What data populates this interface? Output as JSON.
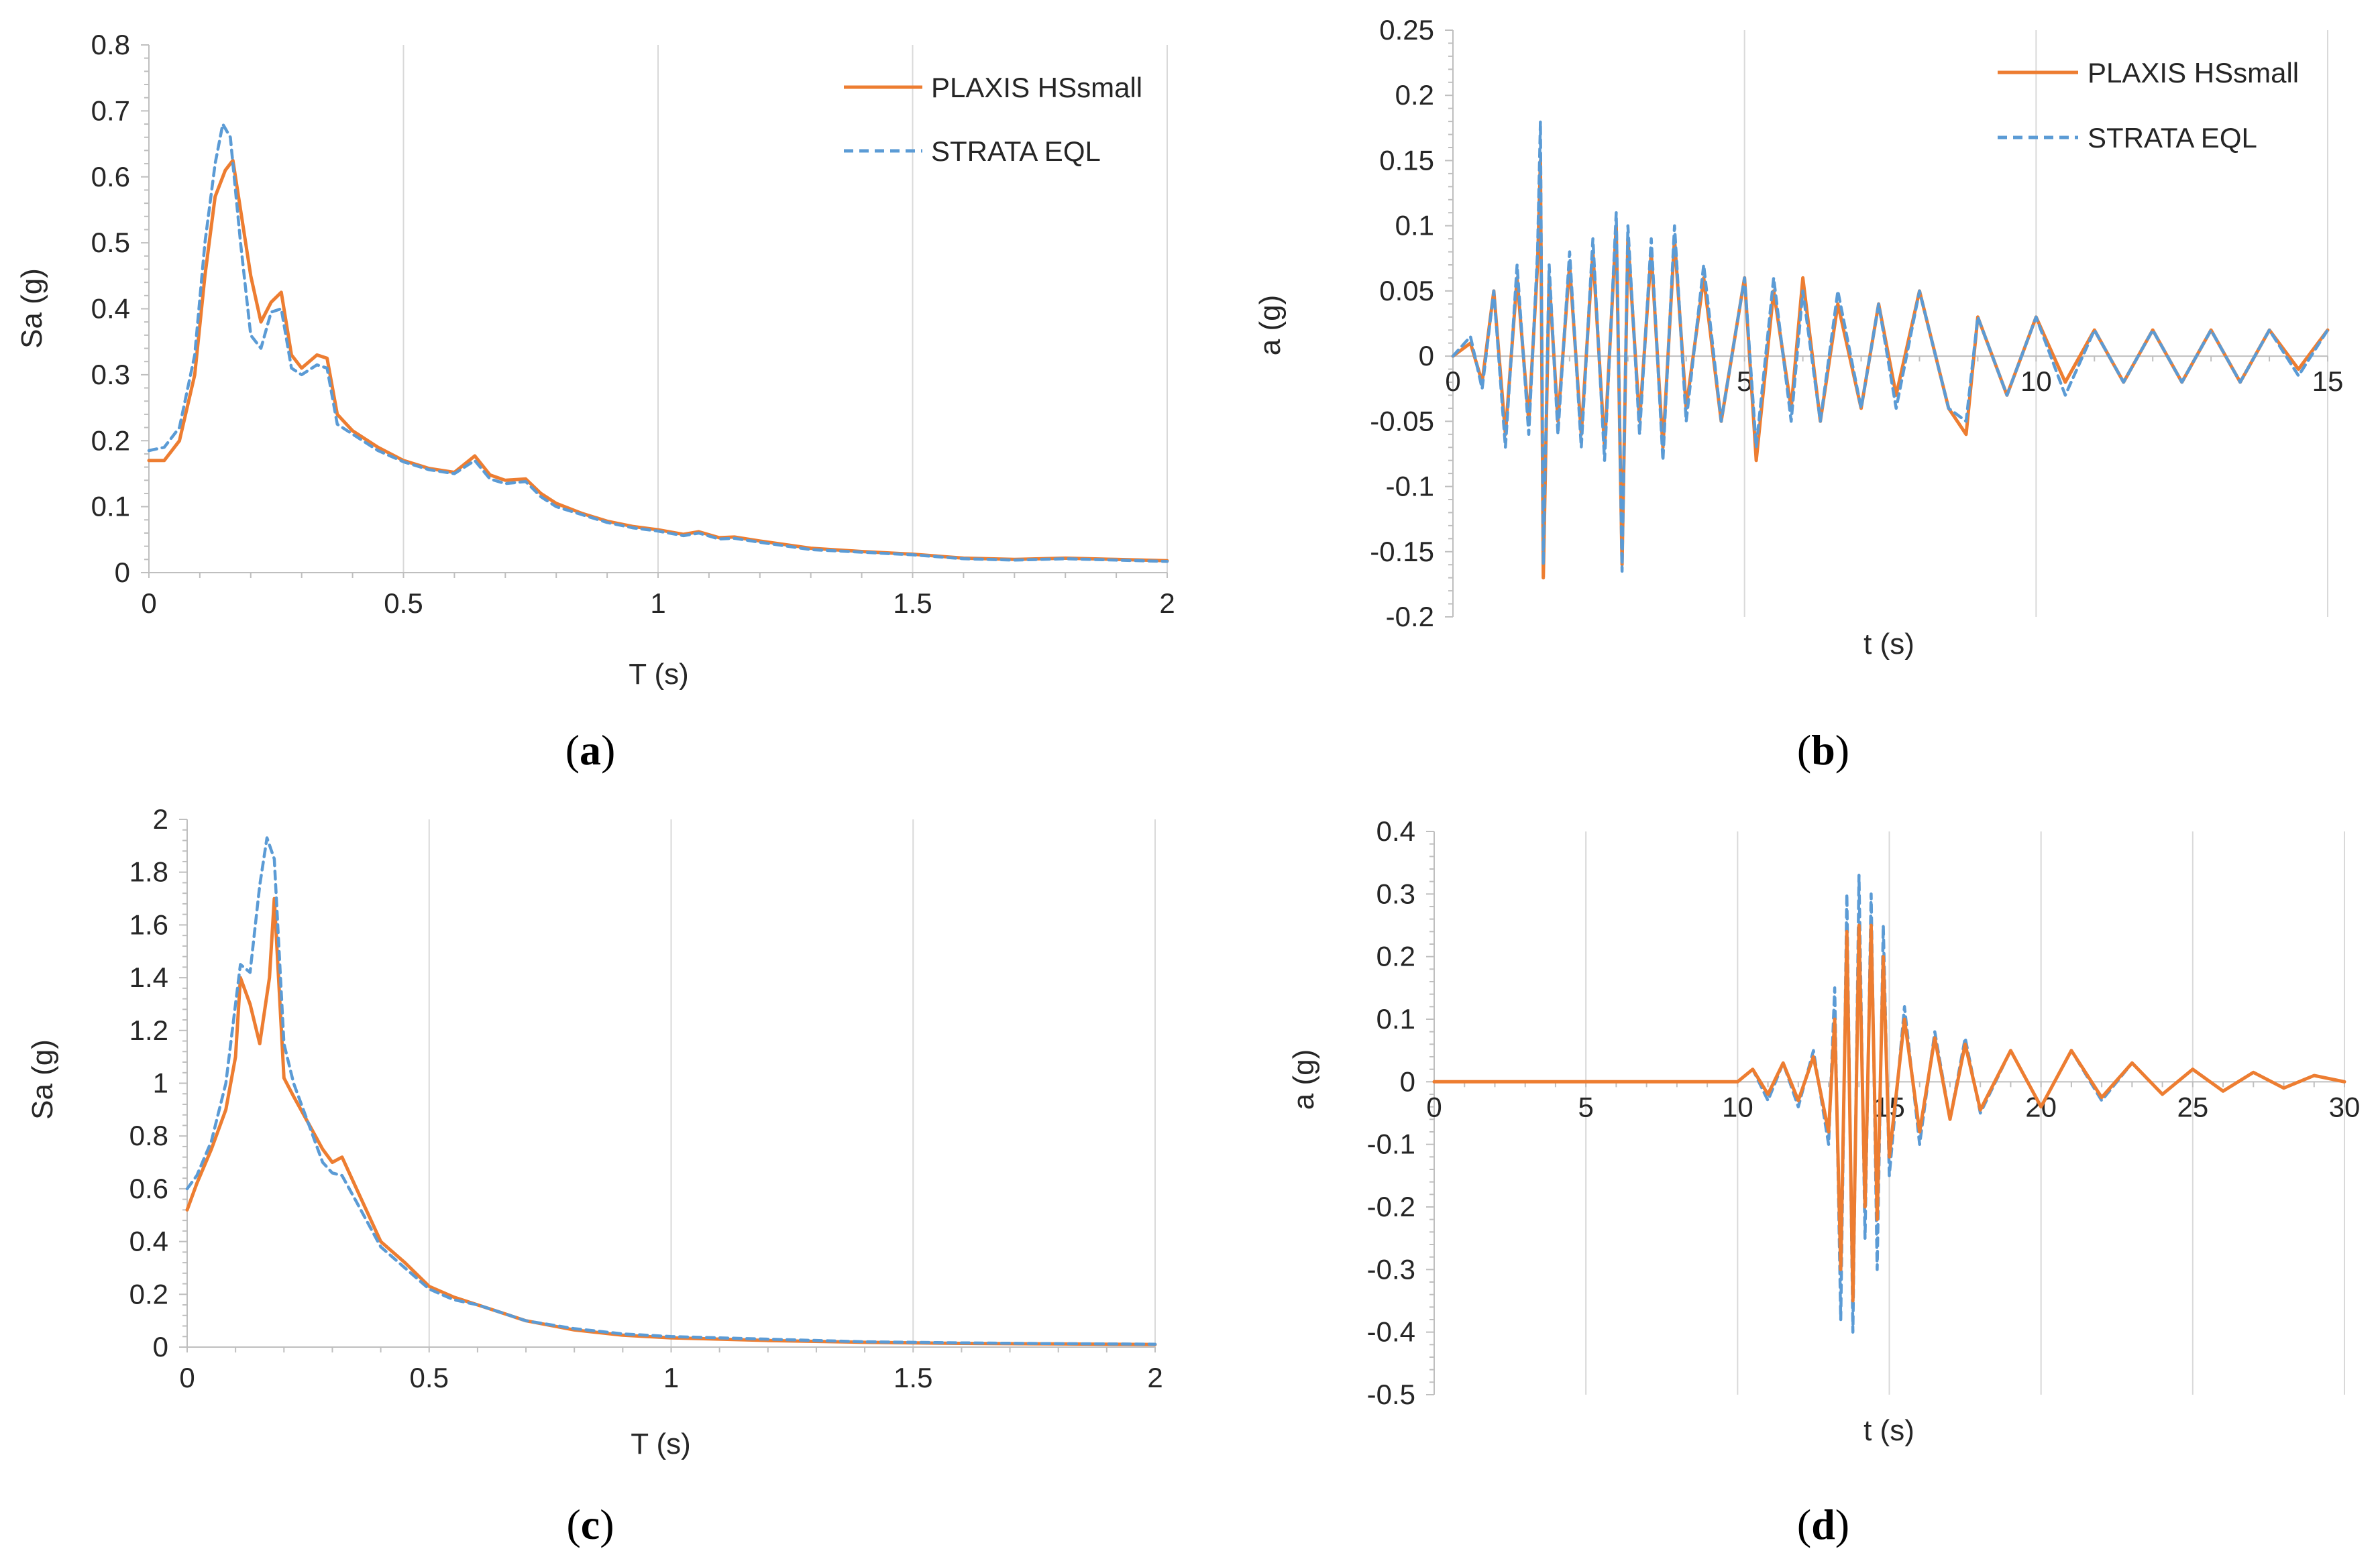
{
  "colors": {
    "plaxis": "#ED7D31",
    "strata": "#5B9BD5",
    "grid": "#d9d9d9",
    "axis": "#bfbfbf"
  },
  "legend": {
    "plaxis": "PLAXIS HSsmall",
    "strata": "STRATA EQL"
  },
  "chart_data": [
    {
      "id": "a",
      "caption": "a",
      "type": "line",
      "xlabel": "T (s)",
      "ylabel": "Sa (g)",
      "xlim": [
        0,
        2
      ],
      "ylim": [
        0,
        0.8
      ],
      "xticks": [
        0,
        0.5,
        1,
        1.5,
        2
      ],
      "xtick_labels": [
        "0",
        "0.5",
        "1",
        "1.5",
        "2"
      ],
      "yticks": [
        0,
        0.1,
        0.2,
        0.3,
        0.4,
        0.5,
        0.6,
        0.7,
        0.8
      ],
      "ytick_labels": [
        "0",
        "0.1",
        "0.2",
        "0.3",
        "0.4",
        "0.5",
        "0.6",
        "0.7",
        "0.8"
      ],
      "legend_position": "top-right",
      "series": [
        {
          "name": "PLAXIS HSsmall",
          "style": "solid",
          "x": [
            0,
            0.03,
            0.06,
            0.09,
            0.11,
            0.13,
            0.15,
            0.165,
            0.18,
            0.2,
            0.22,
            0.24,
            0.26,
            0.28,
            0.3,
            0.33,
            0.35,
            0.37,
            0.4,
            0.45,
            0.5,
            0.55,
            0.6,
            0.64,
            0.67,
            0.7,
            0.74,
            0.77,
            0.8,
            0.85,
            0.9,
            0.95,
            1.0,
            1.05,
            1.08,
            1.12,
            1.15,
            1.2,
            1.3,
            1.4,
            1.5,
            1.6,
            1.7,
            1.8,
            1.9,
            2.0
          ],
          "values": [
            0.17,
            0.17,
            0.2,
            0.3,
            0.45,
            0.57,
            0.61,
            0.625,
            0.55,
            0.45,
            0.38,
            0.41,
            0.425,
            0.33,
            0.31,
            0.33,
            0.325,
            0.24,
            0.215,
            0.19,
            0.17,
            0.158,
            0.152,
            0.177,
            0.148,
            0.14,
            0.142,
            0.12,
            0.105,
            0.09,
            0.078,
            0.07,
            0.065,
            0.058,
            0.062,
            0.053,
            0.054,
            0.048,
            0.037,
            0.032,
            0.028,
            0.022,
            0.02,
            0.022,
            0.02,
            0.018
          ]
        },
        {
          "name": "STRATA EQL",
          "style": "dashed",
          "x": [
            0,
            0.03,
            0.06,
            0.09,
            0.11,
            0.13,
            0.145,
            0.16,
            0.18,
            0.2,
            0.22,
            0.24,
            0.26,
            0.28,
            0.3,
            0.33,
            0.35,
            0.37,
            0.4,
            0.45,
            0.5,
            0.55,
            0.6,
            0.64,
            0.67,
            0.7,
            0.74,
            0.77,
            0.8,
            0.85,
            0.9,
            0.95,
            1.0,
            1.05,
            1.08,
            1.12,
            1.15,
            1.2,
            1.3,
            1.4,
            1.5,
            1.6,
            1.7,
            1.8,
            1.9,
            2.0
          ],
          "values": [
            0.185,
            0.19,
            0.22,
            0.33,
            0.5,
            0.62,
            0.68,
            0.66,
            0.5,
            0.36,
            0.34,
            0.395,
            0.4,
            0.31,
            0.3,
            0.315,
            0.31,
            0.225,
            0.21,
            0.185,
            0.168,
            0.156,
            0.15,
            0.17,
            0.142,
            0.135,
            0.138,
            0.115,
            0.1,
            0.088,
            0.076,
            0.068,
            0.063,
            0.056,
            0.06,
            0.051,
            0.052,
            0.046,
            0.035,
            0.031,
            0.027,
            0.021,
            0.019,
            0.021,
            0.019,
            0.017
          ]
        }
      ]
    },
    {
      "id": "b",
      "caption": "b",
      "type": "line",
      "xlabel": "t (s)",
      "ylabel": "a (g)",
      "xlim": [
        0,
        15
      ],
      "ylim": [
        -0.2,
        0.25
      ],
      "xticks": [
        0,
        5,
        10,
        15
      ],
      "xtick_labels": [
        "0",
        "5",
        "10",
        "15"
      ],
      "yticks": [
        -0.2,
        -0.15,
        -0.1,
        -0.05,
        0,
        0.05,
        0.1,
        0.15,
        0.2,
        0.25
      ],
      "ytick_labels": [
        "-0.2",
        "-0.15",
        "-0.1",
        "-0.05",
        "0",
        "0.05",
        "0.1",
        "0.15",
        "0.2",
        "0.25"
      ],
      "legend_position": "top-right",
      "series": [
        {
          "name": "PLAXIS HSsmall",
          "style": "solid",
          "x": [
            0,
            0.3,
            0.5,
            0.7,
            0.9,
            1.1,
            1.3,
            1.45,
            1.5,
            1.55,
            1.65,
            1.8,
            2.0,
            2.2,
            2.4,
            2.6,
            2.8,
            2.9,
            3.0,
            3.2,
            3.4,
            3.6,
            3.8,
            4.0,
            4.3,
            4.6,
            5.0,
            5.2,
            5.5,
            5.8,
            6.0,
            6.3,
            6.6,
            7.0,
            7.3,
            7.6,
            8.0,
            8.5,
            8.8,
            9.0,
            9.5,
            10.0,
            10.5,
            11.0,
            11.5,
            12.0,
            12.5,
            13.0,
            13.5,
            14.0,
            14.5,
            15.0
          ],
          "values": [
            0,
            0.01,
            -0.02,
            0.05,
            -0.06,
            0.06,
            -0.05,
            0.07,
            0.15,
            -0.17,
            0.06,
            -0.05,
            0.07,
            -0.06,
            0.08,
            -0.07,
            0.1,
            -0.16,
            0.09,
            -0.05,
            0.08,
            -0.07,
            0.09,
            -0.04,
            0.06,
            -0.05,
            0.06,
            -0.08,
            0.05,
            -0.04,
            0.06,
            -0.05,
            0.04,
            -0.04,
            0.04,
            -0.03,
            0.05,
            -0.04,
            -0.06,
            0.03,
            -0.03,
            0.03,
            -0.02,
            0.02,
            -0.02,
            0.02,
            -0.02,
            0.02,
            -0.02,
            0.02,
            -0.01,
            0.02
          ]
        },
        {
          "name": "STRATA EQL",
          "style": "dashed",
          "x": [
            0,
            0.3,
            0.5,
            0.7,
            0.9,
            1.1,
            1.3,
            1.45,
            1.5,
            1.55,
            1.65,
            1.8,
            2.0,
            2.2,
            2.4,
            2.6,
            2.8,
            2.9,
            3.0,
            3.2,
            3.4,
            3.6,
            3.8,
            4.0,
            4.3,
            4.6,
            5.0,
            5.2,
            5.5,
            5.8,
            6.0,
            6.3,
            6.6,
            7.0,
            7.3,
            7.6,
            8.0,
            8.5,
            8.8,
            9.0,
            9.5,
            10.0,
            10.5,
            11.0,
            11.5,
            12.0,
            12.5,
            13.0,
            13.5,
            14.0,
            14.5,
            15.0
          ],
          "values": [
            0,
            0.015,
            -0.025,
            0.05,
            -0.07,
            0.07,
            -0.06,
            0.08,
            0.18,
            -0.16,
            0.07,
            -0.06,
            0.08,
            -0.07,
            0.09,
            -0.08,
            0.11,
            -0.165,
            0.1,
            -0.06,
            0.09,
            -0.08,
            0.1,
            -0.05,
            0.07,
            -0.05,
            0.06,
            -0.07,
            0.06,
            -0.05,
            0.05,
            -0.05,
            0.05,
            -0.04,
            0.04,
            -0.04,
            0.05,
            -0.04,
            -0.05,
            0.03,
            -0.03,
            0.03,
            -0.03,
            0.02,
            -0.02,
            0.02,
            -0.02,
            0.02,
            -0.02,
            0.02,
            -0.015,
            0.02
          ]
        }
      ]
    },
    {
      "id": "c",
      "caption": "c",
      "type": "line",
      "xlabel": "T (s)",
      "ylabel": "Sa (g)",
      "xlim": [
        0,
        2
      ],
      "ylim": [
        0,
        2
      ],
      "xticks": [
        0,
        0.5,
        1,
        1.5,
        2
      ],
      "xtick_labels": [
        "0",
        "0.5",
        "1",
        "1.5",
        "2"
      ],
      "yticks": [
        0,
        0.2,
        0.4,
        0.6,
        0.8,
        1,
        1.2,
        1.4,
        1.6,
        1.8,
        2
      ],
      "ytick_labels": [
        "0",
        "0.2",
        "0.4",
        "0.6",
        "0.8",
        "1",
        "1.2",
        "1.4",
        "1.6",
        "1.8",
        "2"
      ],
      "legend_position": "top-right",
      "series": [
        {
          "name": "PLAXIS HSsmall",
          "style": "solid",
          "x": [
            0,
            0.02,
            0.05,
            0.08,
            0.1,
            0.11,
            0.13,
            0.15,
            0.17,
            0.18,
            0.2,
            0.22,
            0.25,
            0.28,
            0.3,
            0.32,
            0.35,
            0.4,
            0.45,
            0.5,
            0.55,
            0.6,
            0.7,
            0.8,
            0.9,
            1.0,
            1.2,
            1.4,
            1.6,
            1.8,
            2.0
          ],
          "values": [
            0.52,
            0.62,
            0.75,
            0.9,
            1.1,
            1.4,
            1.3,
            1.15,
            1.4,
            1.7,
            1.02,
            0.95,
            0.85,
            0.75,
            0.7,
            0.72,
            0.6,
            0.4,
            0.32,
            0.23,
            0.19,
            0.16,
            0.1,
            0.065,
            0.045,
            0.035,
            0.025,
            0.018,
            0.014,
            0.012,
            0.01
          ]
        },
        {
          "name": "STRATA EQL",
          "style": "dashed",
          "x": [
            0,
            0.02,
            0.05,
            0.08,
            0.1,
            0.11,
            0.13,
            0.15,
            0.165,
            0.18,
            0.2,
            0.22,
            0.25,
            0.28,
            0.3,
            0.32,
            0.35,
            0.4,
            0.45,
            0.5,
            0.55,
            0.6,
            0.7,
            0.8,
            0.9,
            1.0,
            1.2,
            1.4,
            1.6,
            1.8,
            2.0
          ],
          "values": [
            0.6,
            0.65,
            0.78,
            1.0,
            1.3,
            1.45,
            1.42,
            1.75,
            1.93,
            1.85,
            1.15,
            1.0,
            0.85,
            0.7,
            0.66,
            0.65,
            0.55,
            0.38,
            0.3,
            0.22,
            0.18,
            0.16,
            0.1,
            0.07,
            0.05,
            0.04,
            0.03,
            0.02,
            0.016,
            0.013,
            0.011
          ]
        }
      ]
    },
    {
      "id": "d",
      "caption": "d",
      "type": "line",
      "xlabel": "t (s)",
      "ylabel": "a (g)",
      "xlim": [
        0,
        30
      ],
      "ylim": [
        -0.5,
        0.4
      ],
      "xticks": [
        0,
        5,
        10,
        15,
        20,
        25,
        30
      ],
      "xtick_labels": [
        "0",
        "5",
        "10",
        "15",
        "20",
        "25",
        "30"
      ],
      "yticks": [
        -0.5,
        -0.4,
        -0.3,
        -0.2,
        -0.1,
        0,
        0.1,
        0.2,
        0.3,
        0.4
      ],
      "ytick_labels": [
        "-0.5",
        "-0.4",
        "-0.3",
        "-0.2",
        "-0.1",
        "0",
        "0.1",
        "0.2",
        "0.3",
        "0.4"
      ],
      "legend_position": "none",
      "series": [
        {
          "name": "STRATA EQL",
          "style": "dashed",
          "x": [
            0,
            10.0,
            10.5,
            11.0,
            11.5,
            12.0,
            12.5,
            13.0,
            13.2,
            13.4,
            13.6,
            13.8,
            14.0,
            14.2,
            14.4,
            14.6,
            14.8,
            15.0,
            15.5,
            16.0,
            16.5,
            17.0,
            17.5,
            18.0,
            19.0,
            20.0,
            21.0,
            22.0,
            23.0,
            24.0,
            25.0,
            26.0,
            27.0,
            28.0,
            29.0,
            30.0
          ],
          "values": [
            0,
            0,
            0.02,
            -0.03,
            0.03,
            -0.04,
            0.05,
            -0.1,
            0.15,
            -0.38,
            0.3,
            -0.4,
            0.33,
            -0.25,
            0.3,
            -0.3,
            0.25,
            -0.15,
            0.12,
            -0.1,
            0.08,
            -0.06,
            0.07,
            -0.05,
            0.05,
            -0.04,
            0.05,
            -0.03,
            0.03,
            -0.02,
            0.02,
            -0.015,
            0.015,
            -0.01,
            0.01,
            0
          ]
        },
        {
          "name": "PLAXIS HSsmall",
          "style": "solid",
          "x": [
            0,
            10.0,
            10.5,
            11.0,
            11.5,
            12.0,
            12.5,
            13.0,
            13.2,
            13.4,
            13.6,
            13.8,
            14.0,
            14.2,
            14.4,
            14.6,
            14.8,
            15.0,
            15.5,
            16.0,
            16.5,
            17.0,
            17.5,
            18.0,
            19.0,
            20.0,
            21.0,
            22.0,
            23.0,
            24.0,
            25.0,
            26.0,
            27.0,
            28.0,
            29.0,
            30.0
          ],
          "values": [
            0,
            0,
            0.02,
            -0.02,
            0.03,
            -0.03,
            0.04,
            -0.08,
            0.1,
            -0.3,
            0.24,
            -0.35,
            0.25,
            -0.2,
            0.25,
            -0.22,
            0.2,
            -0.12,
            0.1,
            -0.08,
            0.07,
            -0.06,
            0.06,
            -0.045,
            0.05,
            -0.04,
            0.05,
            -0.025,
            0.03,
            -0.02,
            0.02,
            -0.015,
            0.015,
            -0.01,
            0.01,
            0
          ]
        }
      ]
    }
  ]
}
